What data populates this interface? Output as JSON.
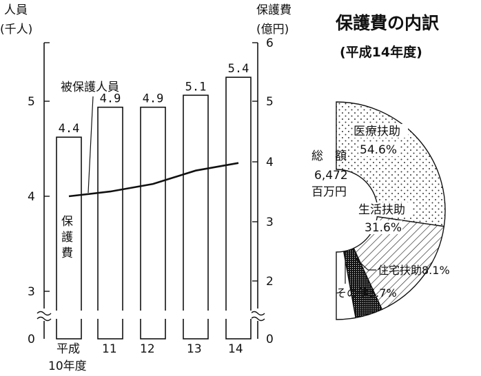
{
  "chart_data": [
    {
      "type": "bar+line",
      "bar_series_label": "保護費",
      "line_series_label": "被保護人員",
      "left_axis_unit": [
        "人員",
        "(千人)"
      ],
      "right_axis_unit": [
        "保護費",
        "(億円)"
      ],
      "x_labels": [
        "平成",
        "10年度",
        "11",
        "12",
        "13",
        "14"
      ],
      "left_ticks": [
        "0",
        "3",
        "4",
        "5"
      ],
      "right_ticks": [
        "0",
        "2",
        "3",
        "4",
        "5",
        "6"
      ],
      "axis_break": true,
      "categories": [
        "10",
        "11",
        "12",
        "13",
        "14"
      ],
      "bars": [
        {
          "category": "10",
          "value": 4.4,
          "label": "4.4"
        },
        {
          "category": "11",
          "value": 4.9,
          "label": "4.9"
        },
        {
          "category": "12",
          "value": 4.9,
          "label": "4.9"
        },
        {
          "category": "13",
          "value": 5.1,
          "label": "5.1"
        },
        {
          "category": "14",
          "value": 5.4,
          "label": "5.4"
        }
      ],
      "line": [
        {
          "category": "10",
          "value": 4.0
        },
        {
          "category": "11",
          "value": 4.05
        },
        {
          "category": "12",
          "value": 4.13
        },
        {
          "category": "13",
          "value": 4.27
        },
        {
          "category": "14",
          "value": 4.35
        }
      ]
    },
    {
      "type": "pie",
      "title": "保護費の内訳",
      "subtitle": "(平成14年度)",
      "center_label": [
        "総　額",
        "6,472",
        "百万円"
      ],
      "slices": [
        {
          "name": "医療扶助",
          "label_lines": [
            "医療扶助",
            "54.6%"
          ],
          "value": 54.6,
          "pattern": "dots"
        },
        {
          "name": "生活扶助",
          "label_lines": [
            "生活扶助",
            "31.6%"
          ],
          "value": 31.6,
          "pattern": "hatch"
        },
        {
          "name": "住宅扶助",
          "label": "住宅扶助8.1%",
          "value": 8.1,
          "pattern": "dense"
        },
        {
          "name": "その他",
          "label": "その他5.7%",
          "value": 5.7,
          "pattern": "none"
        }
      ]
    }
  ]
}
